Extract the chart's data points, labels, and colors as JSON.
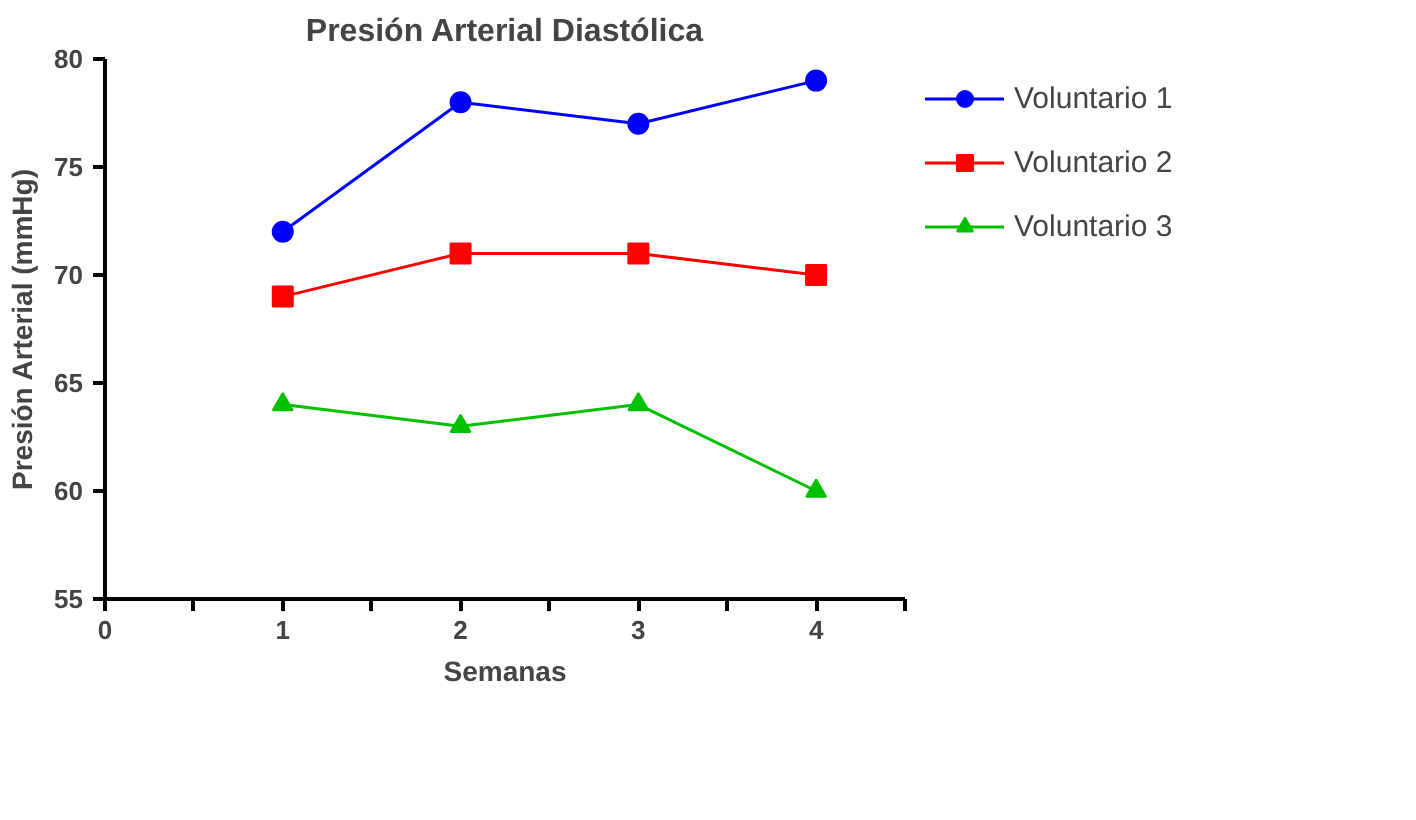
{
  "chart_data": {
    "type": "line",
    "title": "Presión Arterial Diastólica",
    "xlabel": "Semanas",
    "ylabel": "Presión Arterial (mmHg)",
    "x": [
      1,
      2,
      3,
      4
    ],
    "series": [
      {
        "name": "Voluntario 1",
        "color": "#0000ff",
        "marker": "circle",
        "values": [
          72,
          78,
          77,
          79
        ]
      },
      {
        "name": "Voluntario 2",
        "color": "#ff0000",
        "marker": "square",
        "values": [
          69,
          71,
          71,
          70
        ]
      },
      {
        "name": "Voluntario 3",
        "color": "#00c000",
        "marker": "triangle",
        "values": [
          64,
          63,
          64,
          60
        ]
      }
    ],
    "xlim": [
      0,
      4.5
    ],
    "xticks": [
      0,
      {
        "value": 0.5,
        "label": null
      },
      1,
      {
        "value": 1.5,
        "label": null
      },
      2,
      {
        "value": 2.5,
        "label": null
      },
      3,
      {
        "value": 3.5,
        "label": null
      },
      4,
      {
        "value": 4.5,
        "label": null
      }
    ],
    "ylim": [
      55,
      80
    ],
    "yticks": [
      55,
      60,
      65,
      70,
      75,
      80
    ],
    "grid": false,
    "legend": "right",
    "line_style": "solid"
  }
}
